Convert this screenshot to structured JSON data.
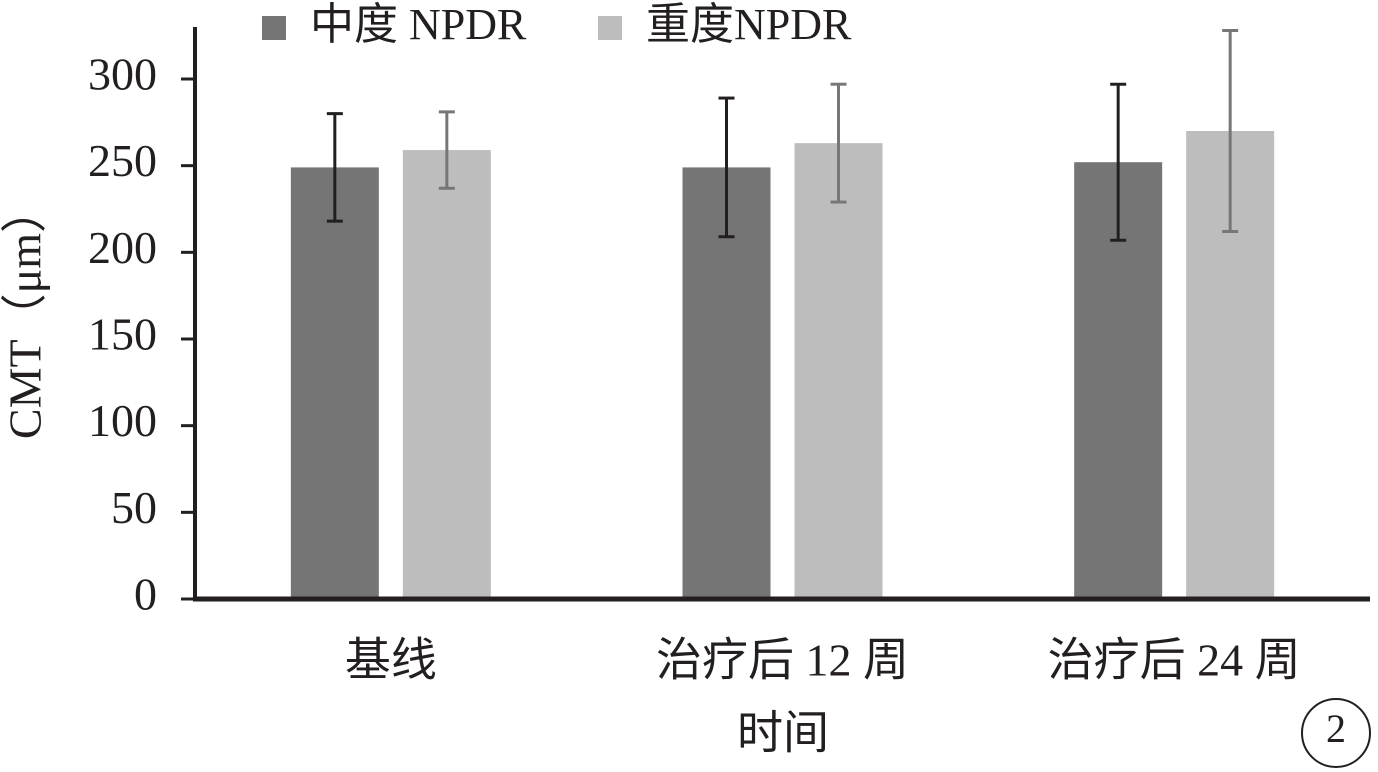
{
  "chart_data": {
    "type": "bar",
    "x_label": "时间",
    "y_label": "CMT（μm）",
    "categories": [
      "基线",
      "治疗后 12 周",
      "治疗后 24 周"
    ],
    "series": [
      {
        "name": "中度 NPDR",
        "color": "#767576",
        "error_color": "#231f20",
        "values": [
          249,
          249,
          252
        ],
        "errors": [
          31,
          40,
          45
        ]
      },
      {
        "name": "重度NPDR",
        "color": "#bdbdbd",
        "error_color": "#777777",
        "values": [
          259,
          263,
          270
        ],
        "errors": [
          22,
          34,
          58
        ]
      }
    ],
    "ylim": [
      0,
      330
    ],
    "yticks": [
      0,
      50,
      100,
      150,
      200,
      250,
      300
    ],
    "annotation": "2"
  }
}
